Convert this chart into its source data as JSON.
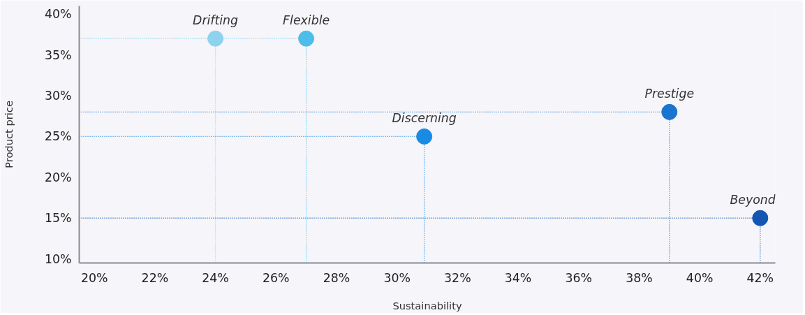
{
  "chart_data": {
    "type": "scatter",
    "xlabel": "Sustainability",
    "ylabel": "Product price",
    "xlim": [
      19.5,
      42.5
    ],
    "ylim": [
      9.5,
      41
    ],
    "xticks": [
      {
        "value": 20,
        "label": "20%"
      },
      {
        "value": 22,
        "label": "22%"
      },
      {
        "value": 24,
        "label": "24%"
      },
      {
        "value": 26,
        "label": "26%"
      },
      {
        "value": 28,
        "label": "28%"
      },
      {
        "value": 30,
        "label": "30%"
      },
      {
        "value": 32,
        "label": "32%"
      },
      {
        "value": 34,
        "label": "34%"
      },
      {
        "value": 36,
        "label": "36%"
      },
      {
        "value": 38,
        "label": "38%"
      },
      {
        "value": 40,
        "label": "40%"
      },
      {
        "value": 42,
        "label": "42%"
      }
    ],
    "yticks": [
      {
        "value": 10,
        "label": "10%"
      },
      {
        "value": 15,
        "label": "15%"
      },
      {
        "value": 20,
        "label": "20%"
      },
      {
        "value": 25,
        "label": "25%"
      },
      {
        "value": 30,
        "label": "30%"
      },
      {
        "value": 35,
        "label": "35%"
      },
      {
        "value": 40,
        "label": "40%"
      }
    ],
    "grid": false,
    "marker": "circle",
    "ref_lines": [
      {
        "axis": "x",
        "value": 24,
        "color": "#8dd3f0",
        "line_style": "dotted"
      },
      {
        "axis": "x",
        "value": 27,
        "color": "#4dbde9",
        "line_style": "dotted"
      },
      {
        "axis": "x",
        "value": 30.9,
        "color": "#1a8be4",
        "line_style": "dotted"
      },
      {
        "axis": "x",
        "value": 39,
        "color": "#1a75cf",
        "line_style": "dotted"
      },
      {
        "axis": "x",
        "value": 42,
        "color": "#1357b3",
        "line_style": "dotted"
      },
      {
        "axis": "y",
        "value": 37,
        "color": "#8dd3f0",
        "line_style": "dotted"
      },
      {
        "axis": "y",
        "value": 25,
        "color": "#1a8be4",
        "line_style": "dotted"
      },
      {
        "axis": "y",
        "value": 28,
        "color": "#1a75cf",
        "line_style": "dotted"
      },
      {
        "axis": "y",
        "value": 15,
        "color": "#1357b3",
        "line_style": "dotted"
      }
    ],
    "series": [
      {
        "name": "Drifting",
        "color": "#8dd3f0",
        "x": [
          24
        ],
        "values": [
          37
        ]
      },
      {
        "name": "Flexible",
        "color": "#4dbde9",
        "x": [
          27
        ],
        "values": [
          37
        ]
      },
      {
        "name": "Discerning",
        "color": "#1a8be4",
        "x": [
          30.9
        ],
        "values": [
          25
        ]
      },
      {
        "name": "Prestige",
        "color": "#1a75cf",
        "x": [
          39
        ],
        "values": [
          28
        ]
      },
      {
        "name": "Beyond",
        "color": "#1357b3",
        "x": [
          42
        ],
        "values": [
          15
        ]
      }
    ]
  }
}
